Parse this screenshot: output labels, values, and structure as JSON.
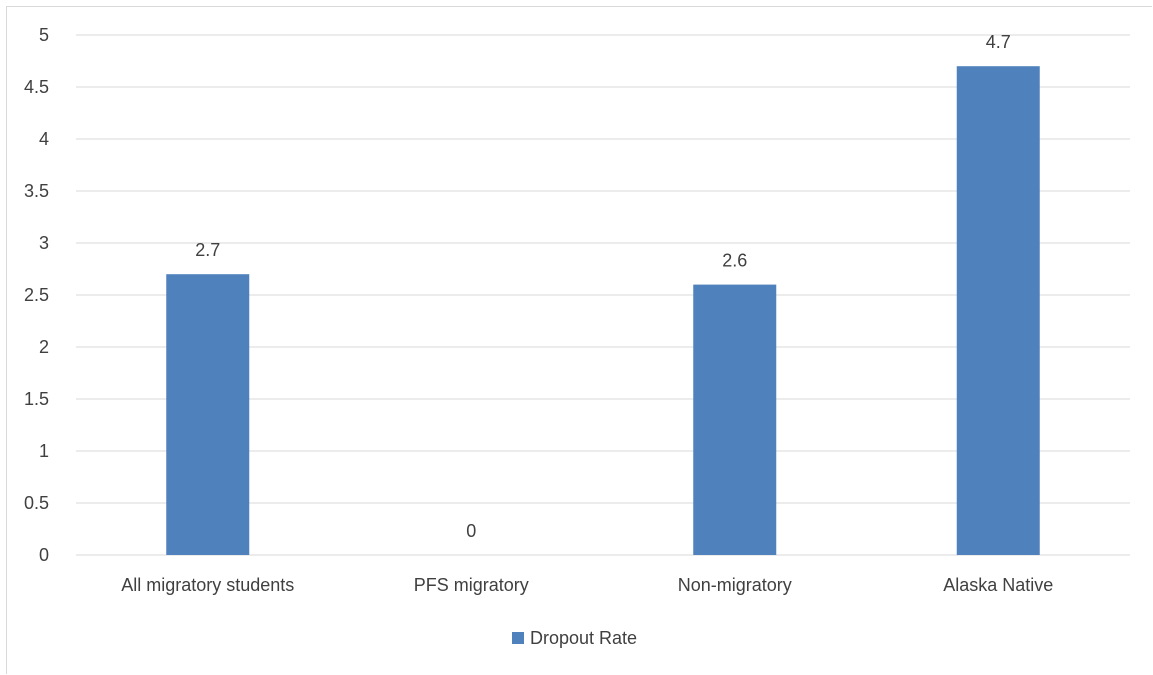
{
  "chart_data": {
    "type": "bar",
    "categories": [
      "All migratory students",
      "PFS migratory",
      "Non-migratory",
      "Alaska Native"
    ],
    "series": [
      {
        "name": "Dropout Rate",
        "values": [
          2.7,
          0,
          2.6,
          4.7
        ],
        "color": "#4f81bd"
      }
    ],
    "data_labels": [
      "2.7",
      "0",
      "2.6",
      "4.7"
    ],
    "y_ticks": [
      "0",
      "0.5",
      "1",
      "1.5",
      "2",
      "2.5",
      "3",
      "3.5",
      "4",
      "4.5",
      "5"
    ],
    "ylim": [
      0,
      5
    ],
    "grid": true,
    "legend": {
      "position": "bottom",
      "label": "Dropout Rate"
    },
    "title": "",
    "xlabel": "",
    "ylabel": "",
    "colors": {
      "gridline": "#d9d9d9",
      "text": "#404040",
      "bar": "#4f81bd"
    }
  }
}
